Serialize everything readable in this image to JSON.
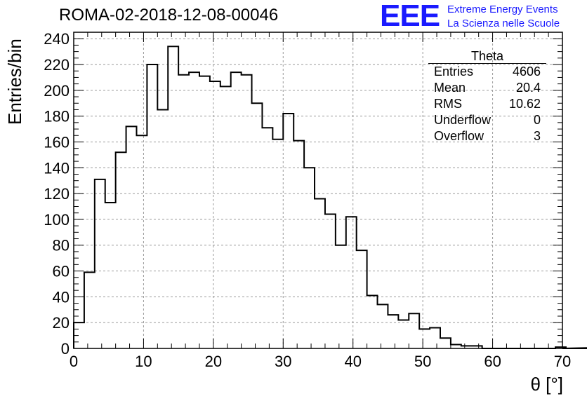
{
  "header": {
    "title": "ROMA-02-2018-12-08-00046",
    "logo_text": "EEE",
    "logo_line1": "Extreme Energy Events",
    "logo_line2": "La Scienza nelle Scuole",
    "logo_color": "#1a1aff"
  },
  "stats": {
    "name": "Theta",
    "rows": [
      {
        "label": "Entries",
        "value": "4606"
      },
      {
        "label": "Mean",
        "value": "20.4"
      },
      {
        "label": "RMS",
        "value": "10.62"
      },
      {
        "label": "Underflow",
        "value": "0"
      },
      {
        "label": "Overflow",
        "value": "3"
      }
    ]
  },
  "chart_data": {
    "type": "bar",
    "title": "ROMA-02-2018-12-08-00046",
    "xlabel": "θ [°]",
    "ylabel": "Entries/bin",
    "xlim": [
      0,
      70
    ],
    "ylim": [
      0,
      245
    ],
    "grid": true,
    "bin_width": 1.5,
    "x_ticks": [
      0,
      10,
      20,
      30,
      40,
      50,
      60,
      70
    ],
    "y_ticks": [
      0,
      20,
      40,
      60,
      80,
      100,
      120,
      140,
      160,
      180,
      200,
      220,
      240
    ],
    "values": [
      20,
      59,
      131,
      113,
      152,
      172,
      165,
      220,
      185,
      234,
      212,
      214,
      211,
      207,
      203,
      214,
      212,
      190,
      171,
      162,
      182,
      161,
      140,
      116,
      104,
      80,
      102,
      76,
      41,
      34,
      26,
      22,
      27,
      15,
      16,
      8,
      3,
      2,
      2,
      0,
      0,
      0,
      0,
      0,
      0,
      0,
      1,
      0,
      0,
      0,
      0,
      1
    ],
    "line_color": "#000000"
  }
}
